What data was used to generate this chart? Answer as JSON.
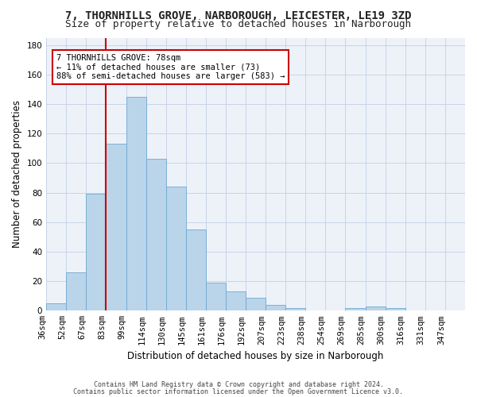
{
  "title_line1": "7, THORNHILLS GROVE, NARBOROUGH, LEICESTER, LE19 3ZD",
  "title_line2": "Size of property relative to detached houses in Narborough",
  "xlabel": "Distribution of detached houses by size in Narborough",
  "ylabel": "Number of detached properties",
  "bar_color": "#bad4ea",
  "bar_edge_color": "#6fa8d0",
  "bar_values": [
    5,
    26,
    79,
    113,
    145,
    103,
    84,
    55,
    19,
    13,
    9,
    4,
    2,
    0,
    0,
    2,
    3,
    2
  ],
  "bin_labels": [
    "36sqm",
    "52sqm",
    "67sqm",
    "83sqm",
    "99sqm",
    "114sqm",
    "130sqm",
    "145sqm",
    "161sqm",
    "176sqm",
    "192sqm",
    "207sqm",
    "223sqm",
    "238sqm",
    "254sqm",
    "269sqm",
    "285sqm",
    "300sqm",
    "316sqm",
    "331sqm",
    "347sqm"
  ],
  "ylim": [
    0,
    185
  ],
  "yticks": [
    0,
    20,
    40,
    60,
    80,
    100,
    120,
    140,
    160,
    180
  ],
  "vline_x_index": 3,
  "vline_color": "#cc0000",
  "annotation_text": "7 THORNHILLS GROVE: 78sqm\n← 11% of detached houses are smaller (73)\n88% of semi-detached houses are larger (583) →",
  "annotation_box_color": "#ffffff",
  "annotation_box_edge": "#cc0000",
  "footer_line1": "Contains HM Land Registry data © Crown copyright and database right 2024.",
  "footer_line2": "Contains public sector information licensed under the Open Government Licence v3.0.",
  "background_color": "#edf2f9",
  "grid_color": "#c8d4e8",
  "title_fontsize": 10,
  "subtitle_fontsize": 9,
  "tick_fontsize": 7.5,
  "ylabel_fontsize": 8.5,
  "xlabel_fontsize": 8.5,
  "annotation_fontsize": 7.5,
  "footer_fontsize": 6
}
